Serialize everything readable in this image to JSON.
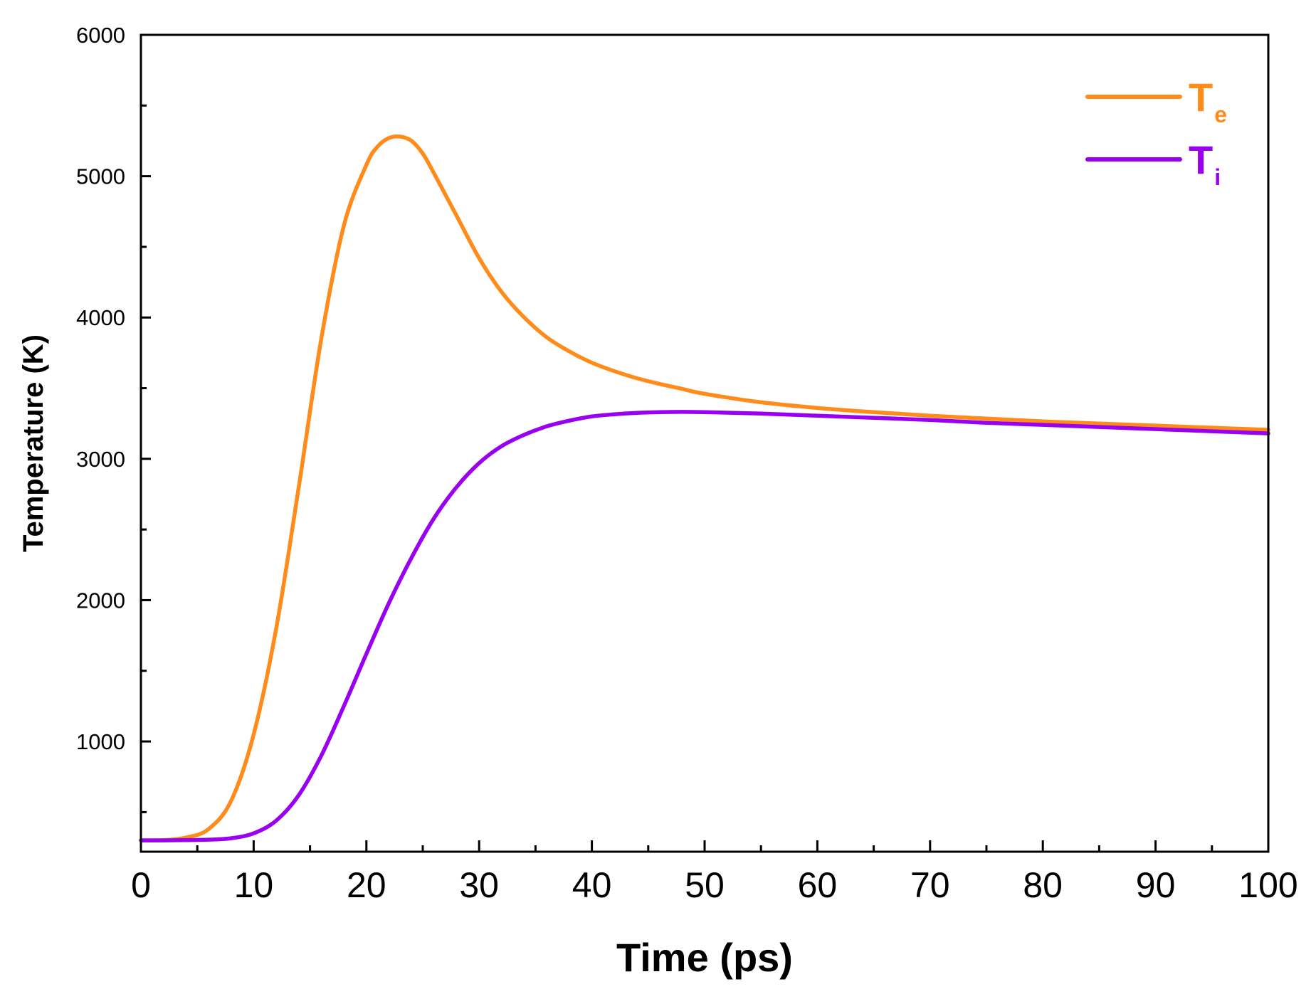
{
  "chart_data": {
    "type": "line",
    "title": "",
    "xlabel": "Time (ps)",
    "ylabel": "Temperature (K)",
    "xlim": [
      0,
      100
    ],
    "ylim": [
      220,
      6000
    ],
    "x_ticks": [
      0,
      10,
      20,
      30,
      40,
      50,
      60,
      70,
      80,
      90,
      100
    ],
    "x_tick_labels": [
      "0",
      "10",
      "20",
      "30",
      "40",
      "50",
      "60",
      "70",
      "80",
      "90",
      "100"
    ],
    "y_ticks": [
      1000,
      2000,
      3000,
      4000,
      5000,
      6000
    ],
    "y_tick_labels": [
      "1000",
      "2000",
      "3000",
      "4000",
      "5000",
      "6000"
    ],
    "grid": false,
    "legend_position": "top-right",
    "series": [
      {
        "name": "Te",
        "label_main": "T",
        "label_sub": "e",
        "color": "#ff8c1a",
        "x": [
          0,
          2,
          4,
          6,
          8,
          10,
          12,
          14,
          16,
          18,
          20,
          21,
          22,
          23,
          24,
          25,
          26,
          28,
          30,
          32,
          34,
          36,
          38,
          40,
          42,
          44,
          46,
          48,
          50,
          55,
          60,
          65,
          70,
          75,
          80,
          85,
          90,
          95,
          100
        ],
        "y": [
          300,
          302,
          320,
          380,
          580,
          1050,
          1800,
          2800,
          3850,
          4650,
          5080,
          5210,
          5270,
          5280,
          5250,
          5160,
          5020,
          4720,
          4420,
          4180,
          4000,
          3860,
          3760,
          3680,
          3620,
          3570,
          3530,
          3495,
          3460,
          3400,
          3360,
          3330,
          3305,
          3285,
          3265,
          3250,
          3235,
          3220,
          3205
        ]
      },
      {
        "name": "Ti",
        "label_main": "T",
        "label_sub": "i",
        "color": "#9a00f0",
        "x": [
          0,
          2,
          4,
          6,
          8,
          10,
          12,
          14,
          16,
          18,
          20,
          22,
          24,
          26,
          28,
          30,
          32,
          34,
          36,
          38,
          40,
          42,
          44,
          46,
          48,
          50,
          55,
          60,
          65,
          70,
          75,
          80,
          85,
          90,
          95,
          100
        ],
        "y": [
          300,
          300,
          302,
          305,
          315,
          350,
          440,
          620,
          900,
          1250,
          1620,
          1980,
          2300,
          2580,
          2800,
          2970,
          3090,
          3170,
          3230,
          3270,
          3300,
          3315,
          3325,
          3330,
          3332,
          3330,
          3320,
          3305,
          3290,
          3275,
          3255,
          3240,
          3225,
          3210,
          3195,
          3180
        ]
      }
    ]
  }
}
